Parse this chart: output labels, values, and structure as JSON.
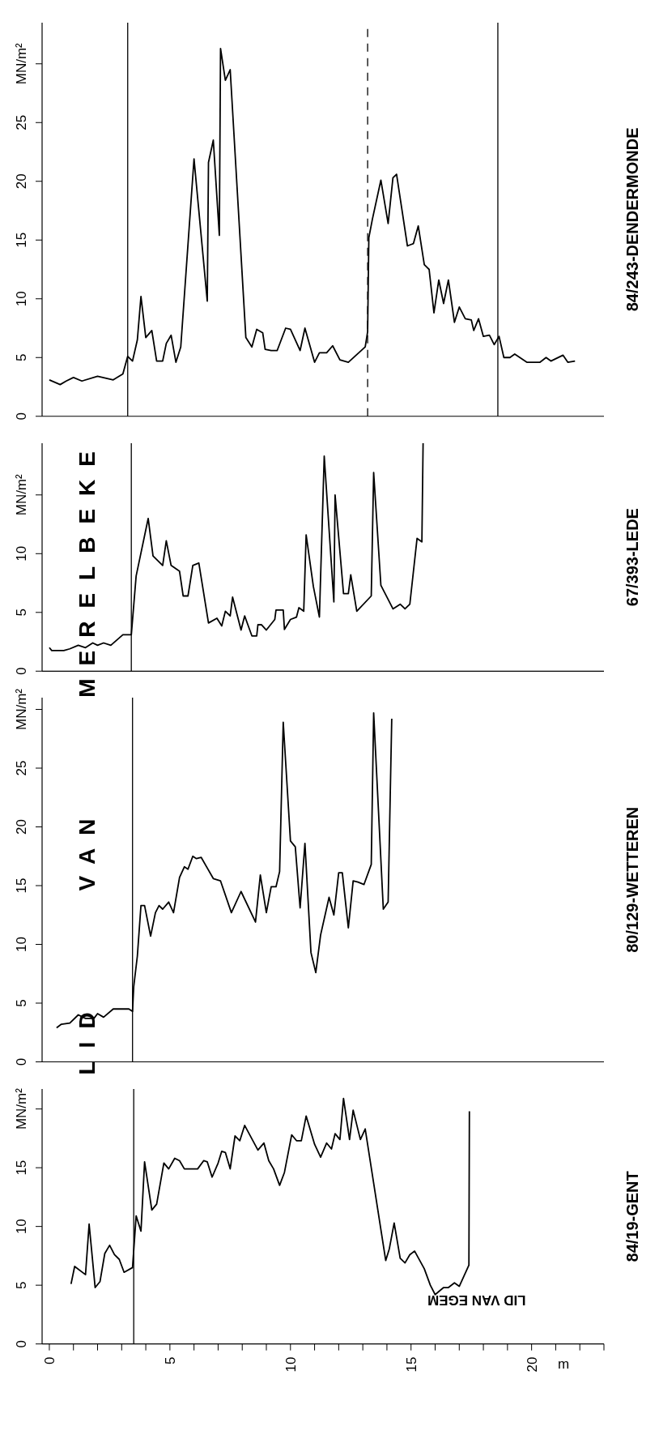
{
  "chart_data": [
    {
      "type": "line",
      "xlim": [
        -0.3,
        23
      ],
      "ylim": [
        0,
        33.5
      ],
      "yticks": [
        0,
        5,
        10,
        15,
        20,
        25,
        {
          "value": 30,
          "label": "MN/m²"
        }
      ],
      "tick_labels": "y",
      "marker": "none",
      "line_style": "solid",
      "ref_lines": [
        {
          "axis": "x",
          "value": 3.25,
          "color": "#000000",
          "line_style": "solid"
        },
        {
          "axis": "x",
          "value": 13.2,
          "color": "#000000",
          "line_style": "dashed"
        },
        {
          "axis": "x",
          "value": 18.6,
          "color": "#000000",
          "line_style": "solid"
        }
      ],
      "series": [
        {
          "name": "84/243-DENDERMONDE",
          "color": "#000000",
          "x": [
            0.0,
            0.45,
            0.7,
            1.0,
            1.35,
            2.0,
            2.65,
            3.05,
            3.25,
            3.45,
            3.65,
            3.8,
            4.0,
            4.25,
            4.45,
            4.7,
            4.85,
            5.05,
            5.25,
            5.45,
            6.0,
            6.55,
            6.6,
            6.8,
            7.05,
            7.1,
            7.3,
            7.5,
            8.15,
            8.4,
            8.6,
            8.85,
            8.95,
            9.2,
            9.45,
            9.8,
            10.0,
            10.4,
            10.6,
            11.0,
            11.2,
            11.5,
            11.75,
            12.05,
            12.4,
            13.1,
            13.2,
            13.25,
            13.4,
            13.75,
            14.05,
            14.25,
            14.4,
            14.85,
            15.1,
            15.3,
            15.55,
            15.75,
            15.95,
            16.15,
            16.35,
            16.55,
            16.8,
            17.0,
            17.25,
            17.5,
            17.6,
            17.8,
            18.0,
            18.25,
            18.45,
            18.65,
            18.85,
            19.1,
            19.3,
            19.8,
            20.35,
            20.6,
            20.8,
            21.3,
            21.5,
            21.8
          ],
          "values": [
            3.1,
            2.7,
            3.0,
            3.3,
            3.0,
            3.4,
            3.1,
            3.6,
            5.1,
            4.7,
            6.5,
            10.2,
            6.7,
            7.3,
            4.7,
            4.7,
            6.2,
            6.9,
            4.6,
            5.9,
            21.9,
            9.8,
            21.6,
            23.5,
            15.4,
            31.3,
            28.6,
            29.5,
            6.7,
            5.9,
            7.4,
            7.1,
            5.7,
            5.6,
            5.6,
            7.5,
            7.4,
            5.6,
            7.5,
            4.6,
            5.4,
            5.4,
            6.0,
            4.8,
            4.6,
            5.9,
            7.2,
            15.2,
            16.8,
            20.1,
            16.4,
            20.3,
            20.6,
            14.5,
            14.7,
            16.2,
            12.9,
            12.5,
            8.8,
            11.6,
            9.6,
            11.6,
            8.0,
            9.3,
            8.3,
            8.2,
            7.3,
            8.3,
            6.8,
            6.9,
            6.1,
            6.8,
            5.0,
            5.0,
            5.3,
            4.6,
            4.6,
            5.0,
            4.7,
            5.2,
            4.6,
            4.7
          ]
        }
      ]
    },
    {
      "type": "line",
      "xlim": [
        -0.3,
        23
      ],
      "ylim": [
        0,
        19.4
      ],
      "yticks": [
        0,
        5,
        10,
        {
          "value": 15,
          "label": "MN/m²"
        }
      ],
      "tick_labels": "y",
      "marker": "none",
      "line_style": "solid",
      "ref_lines": [
        {
          "axis": "x",
          "value": 3.4,
          "color": "#000000",
          "line_style": "solid"
        }
      ],
      "series": [
        {
          "name": "67/393-LEDE",
          "color": "#000000",
          "x": [
            0.0,
            0.1,
            0.6,
            0.85,
            1.2,
            1.5,
            1.8,
            2.0,
            2.25,
            2.55,
            3.05,
            3.4,
            3.6,
            4.1,
            4.3,
            4.7,
            4.85,
            5.05,
            5.4,
            5.55,
            5.75,
            5.95,
            6.2,
            6.6,
            6.95,
            7.15,
            7.3,
            7.5,
            7.6,
            7.95,
            8.1,
            8.4,
            8.6,
            8.65,
            8.8,
            9.0,
            9.35,
            9.4,
            9.7,
            9.75,
            10.0,
            10.25,
            10.35,
            10.55,
            10.65,
            10.95,
            11.2,
            11.4,
            11.8,
            11.85,
            12.2,
            12.4,
            12.5,
            12.75,
            13.35,
            13.45,
            13.75,
            14.25,
            14.55,
            14.75,
            14.95,
            15.25,
            15.45,
            15.5
          ],
          "values": [
            2.0,
            1.75,
            1.75,
            1.9,
            2.2,
            2.0,
            2.4,
            2.2,
            2.4,
            2.2,
            3.1,
            3.1,
            8.1,
            13.0,
            9.8,
            9.0,
            11.1,
            9.0,
            8.5,
            6.4,
            6.4,
            9.0,
            9.2,
            4.1,
            4.5,
            3.85,
            5.1,
            4.7,
            6.3,
            3.5,
            4.7,
            3.0,
            3.0,
            3.95,
            3.95,
            3.5,
            4.4,
            5.2,
            5.2,
            3.55,
            4.4,
            4.6,
            5.4,
            5.1,
            11.6,
            7.2,
            4.6,
            18.3,
            5.9,
            15.0,
            6.6,
            6.6,
            8.2,
            5.1,
            6.4,
            16.9,
            7.3,
            5.3,
            5.7,
            5.3,
            5.7,
            11.3,
            11.0,
            19.4
          ]
        }
      ]
    },
    {
      "type": "line",
      "xlim": [
        -0.3,
        23
      ],
      "ylim": [
        0,
        31
      ],
      "yticks": [
        0,
        5,
        10,
        15,
        20,
        25,
        {
          "value": 30,
          "label": "MN/m²"
        }
      ],
      "tick_labels": "y",
      "marker": "none",
      "line_style": "solid",
      "annotations": [
        "LID VAN MERELBEKE"
      ],
      "ref_lines": [
        {
          "axis": "x",
          "value": 3.45,
          "color": "#000000",
          "line_style": "solid"
        }
      ],
      "series": [
        {
          "name": "80/129-WETTEREN",
          "color": "#000000",
          "x": [
            0.3,
            0.5,
            0.85,
            1.2,
            1.5,
            1.85,
            2.0,
            2.25,
            2.65,
            3.3,
            3.45,
            3.5,
            3.65,
            3.8,
            3.95,
            4.2,
            4.4,
            4.55,
            4.7,
            4.95,
            5.15,
            5.4,
            5.6,
            5.75,
            5.95,
            6.1,
            6.3,
            6.8,
            7.1,
            7.55,
            7.95,
            8.55,
            8.75,
            9.0,
            9.2,
            9.4,
            9.55,
            9.7,
            10.0,
            10.2,
            10.4,
            10.6,
            10.85,
            11.05,
            11.25,
            11.6,
            11.8,
            12.0,
            12.15,
            12.4,
            12.6,
            12.8,
            13.05,
            13.35,
            13.45,
            13.85,
            14.05,
            14.2
          ],
          "values": [
            2.9,
            3.2,
            3.3,
            4.0,
            3.7,
            3.7,
            4.1,
            3.8,
            4.5,
            4.5,
            4.3,
            6.4,
            9.0,
            13.3,
            13.3,
            10.7,
            12.7,
            13.3,
            13.0,
            13.6,
            12.7,
            15.7,
            16.6,
            16.4,
            17.5,
            17.3,
            17.4,
            15.6,
            15.4,
            12.7,
            14.5,
            11.9,
            15.9,
            12.7,
            14.9,
            14.9,
            16.2,
            28.9,
            18.8,
            18.3,
            13.1,
            18.6,
            9.3,
            7.6,
            10.8,
            14.0,
            12.5,
            16.1,
            16.1,
            11.4,
            15.4,
            15.3,
            15.1,
            16.8,
            29.7,
            13.0,
            13.6,
            29.2
          ]
        }
      ]
    },
    {
      "type": "line",
      "xlabel": "m",
      "xlim": [
        -0.3,
        23
      ],
      "xticks": [
        0,
        {
          "value": 1,
          "label": null
        },
        {
          "value": 2,
          "label": null
        },
        {
          "value": 3,
          "label": null
        },
        {
          "value": 4,
          "label": null
        },
        5,
        {
          "value": 6,
          "label": null
        },
        {
          "value": 7,
          "label": null
        },
        {
          "value": 8,
          "label": null
        },
        {
          "value": 9,
          "label": null
        },
        10,
        {
          "value": 11,
          "label": null
        },
        {
          "value": 12,
          "label": null
        },
        {
          "value": 13,
          "label": null
        },
        {
          "value": 14,
          "label": null
        },
        15,
        {
          "value": 16,
          "label": null
        },
        {
          "value": 17,
          "label": null
        },
        {
          "value": 18,
          "label": null
        },
        {
          "value": 19,
          "label": null
        },
        20,
        {
          "value": 21,
          "label": null
        },
        {
          "value": 22,
          "label": null
        },
        {
          "value": 23,
          "label": null
        }
      ],
      "ylim": [
        0,
        21.7
      ],
      "yticks": [
        0,
        5,
        10,
        15,
        {
          "value": 20,
          "label": "MN/m²"
        }
      ],
      "marker": "none",
      "line_style": "solid",
      "annotations": [
        "LID VAN EGEM"
      ],
      "ref_lines": [
        {
          "axis": "x",
          "value": 3.5,
          "color": "#000000",
          "line_style": "solid"
        }
      ],
      "series": [
        {
          "name": "84/19-GENT",
          "color": "#000000",
          "x": [
            0.9,
            1.05,
            1.5,
            1.65,
            1.9,
            2.1,
            2.3,
            2.5,
            2.7,
            2.9,
            3.1,
            3.45,
            3.6,
            3.8,
            3.95,
            4.25,
            4.45,
            4.75,
            4.95,
            5.2,
            5.4,
            5.6,
            6.15,
            6.4,
            6.55,
            6.75,
            7.0,
            7.15,
            7.3,
            7.5,
            7.7,
            7.9,
            8.1,
            8.65,
            8.9,
            9.1,
            9.3,
            9.55,
            9.75,
            10.05,
            10.25,
            10.45,
            10.65,
            11.0,
            11.25,
            11.5,
            11.7,
            11.85,
            12.05,
            12.2,
            12.45,
            12.6,
            12.9,
            13.1,
            13.95,
            14.1,
            14.3,
            14.55,
            14.75,
            14.95,
            15.15,
            15.55,
            15.8,
            16.0,
            16.35,
            16.55,
            16.8,
            17.0,
            17.4,
            17.42
          ],
          "values": [
            5.1,
            6.6,
            5.9,
            10.2,
            4.8,
            5.3,
            7.7,
            8.4,
            7.6,
            7.2,
            6.1,
            6.5,
            10.9,
            9.6,
            15.5,
            11.4,
            11.9,
            15.4,
            14.9,
            15.8,
            15.6,
            14.9,
            14.9,
            15.6,
            15.5,
            14.2,
            15.4,
            16.4,
            16.3,
            14.9,
            17.7,
            17.3,
            18.6,
            16.5,
            17.1,
            15.6,
            14.9,
            13.5,
            14.6,
            17.8,
            17.3,
            17.3,
            19.4,
            17.0,
            15.9,
            17.1,
            16.6,
            17.9,
            17.4,
            20.9,
            17.4,
            19.9,
            17.4,
            18.3,
            7.1,
            8.1,
            10.3,
            7.3,
            6.9,
            7.6,
            7.9,
            6.4,
            5.0,
            4.2,
            4.8,
            4.8,
            5.2,
            4.9,
            6.7,
            19.8
          ]
        }
      ]
    }
  ]
}
